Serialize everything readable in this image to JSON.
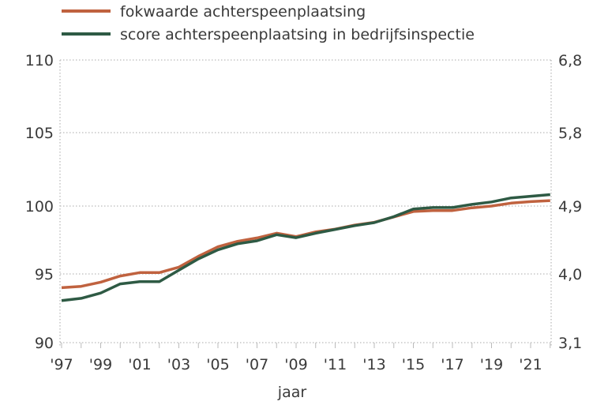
{
  "chart_data": {
    "type": "line",
    "title": "",
    "xlabel": "jaar",
    "legend_position": "top-left",
    "grid": "horizontal dotted",
    "x": [
      1997,
      1998,
      1999,
      2000,
      2001,
      2002,
      2003,
      2004,
      2005,
      2006,
      2007,
      2008,
      2009,
      2010,
      2011,
      2012,
      2013,
      2014,
      2015,
      2016,
      2017,
      2018,
      2019,
      2020,
      2021,
      2022
    ],
    "x_tick_labels": [
      "'97",
      "'99",
      "'01",
      "'03",
      "'05",
      "'07",
      "'09",
      "'11",
      "'13",
      "'15",
      "'17",
      "'19",
      "'21"
    ],
    "x_tick_years": [
      1997,
      1999,
      2001,
      2003,
      2005,
      2007,
      2009,
      2011,
      2013,
      2015,
      2017,
      2019,
      2021
    ],
    "y_left": {
      "ticks": [
        90,
        95,
        100,
        105,
        110
      ],
      "tick_labels": [
        "90",
        "95",
        "100",
        "105",
        "110"
      ],
      "ylim": [
        90,
        110
      ]
    },
    "y_right": {
      "ticks": [
        3.1,
        4.0,
        4.9,
        5.8,
        6.8
      ],
      "tick_labels": [
        "3,1",
        "4,0",
        "4,9",
        "5,8",
        "6,8"
      ],
      "ylim": [
        3.1,
        6.8
      ]
    },
    "series": [
      {
        "name": "fokwaarde achterspeenplaatsing",
        "axis": "left",
        "color": "#c0623f",
        "values": [
          94.0,
          94.1,
          94.4,
          94.85,
          95.1,
          95.1,
          95.5,
          96.3,
          97.0,
          97.4,
          97.65,
          98.0,
          97.75,
          98.1,
          98.3,
          98.6,
          98.8,
          99.2,
          99.6,
          99.67,
          99.67,
          99.87,
          100.0,
          100.2,
          100.3,
          100.37
        ]
      },
      {
        "name": "score achterspeenplaatsing in bedrijfsinspectie",
        "axis": "right",
        "color": "#2e5a44",
        "values": [
          3.65,
          3.68,
          3.75,
          3.87,
          3.9,
          3.9,
          4.05,
          4.2,
          4.32,
          4.4,
          4.44,
          4.52,
          4.48,
          4.54,
          4.59,
          4.64,
          4.68,
          4.76,
          4.86,
          4.88,
          4.88,
          4.92,
          4.95,
          5.0,
          5.02,
          5.04
        ]
      }
    ]
  }
}
